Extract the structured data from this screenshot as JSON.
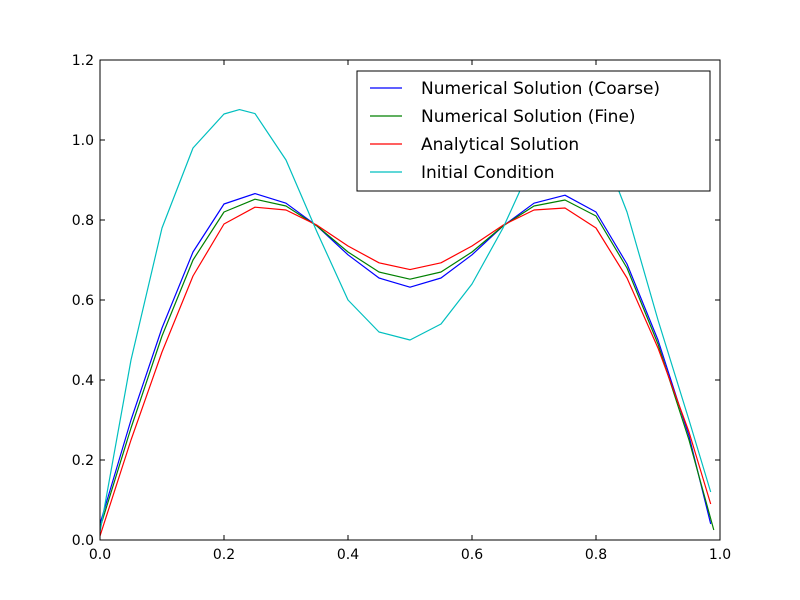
{
  "chart_data": {
    "type": "line",
    "title": "",
    "xlabel": "",
    "ylabel": "",
    "xlim": [
      0.0,
      1.0
    ],
    "ylim": [
      0.0,
      1.2
    ],
    "x_ticks": [
      "0.0",
      "0.2",
      "0.4",
      "0.6",
      "0.8",
      "1.0"
    ],
    "y_ticks": [
      "0.0",
      "0.2",
      "0.4",
      "0.6",
      "0.8",
      "1.0",
      "1.2"
    ],
    "grid": false,
    "legend_position": "top-right",
    "series": [
      {
        "name": "Numerical Solution (Coarse)",
        "color": "#0000ff",
        "x": [
          0.0,
          0.05,
          0.1,
          0.15,
          0.2,
          0.25,
          0.3,
          0.35,
          0.4,
          0.45,
          0.5,
          0.55,
          0.6,
          0.65,
          0.7,
          0.75,
          0.8,
          0.85,
          0.9,
          0.95,
          0.985
        ],
        "y": [
          0.04,
          0.3,
          0.53,
          0.72,
          0.84,
          0.866,
          0.842,
          0.785,
          0.713,
          0.655,
          0.632,
          0.655,
          0.713,
          0.785,
          0.842,
          0.862,
          0.82,
          0.69,
          0.5,
          0.26,
          0.04
        ]
      },
      {
        "name": "Numerical Solution (Fine)",
        "color": "#008000",
        "x": [
          0.0,
          0.05,
          0.1,
          0.15,
          0.2,
          0.25,
          0.3,
          0.35,
          0.4,
          0.45,
          0.5,
          0.55,
          0.6,
          0.65,
          0.7,
          0.75,
          0.8,
          0.85,
          0.9,
          0.95,
          0.99
        ],
        "y": [
          0.03,
          0.28,
          0.51,
          0.7,
          0.82,
          0.852,
          0.835,
          0.785,
          0.72,
          0.67,
          0.652,
          0.67,
          0.72,
          0.785,
          0.835,
          0.85,
          0.81,
          0.68,
          0.49,
          0.25,
          0.025
        ]
      },
      {
        "name": "Analytical Solution",
        "color": "#ff0000",
        "x": [
          0.0,
          0.05,
          0.1,
          0.15,
          0.2,
          0.25,
          0.3,
          0.35,
          0.4,
          0.45,
          0.5,
          0.55,
          0.6,
          0.65,
          0.7,
          0.75,
          0.8,
          0.85,
          0.9,
          0.95,
          0.985
        ],
        "y": [
          0.01,
          0.25,
          0.47,
          0.66,
          0.79,
          0.832,
          0.825,
          0.787,
          0.735,
          0.693,
          0.676,
          0.693,
          0.735,
          0.787,
          0.825,
          0.83,
          0.78,
          0.655,
          0.48,
          0.27,
          0.09
        ]
      },
      {
        "name": "Initial Condition",
        "color": "#00bfbf",
        "x": [
          0.0,
          0.05,
          0.1,
          0.15,
          0.2,
          0.225,
          0.25,
          0.3,
          0.35,
          0.4,
          0.45,
          0.5,
          0.55,
          0.6,
          0.65,
          0.7,
          0.75,
          0.8,
          0.85,
          0.9,
          0.95,
          0.985
        ],
        "y": [
          0.02,
          0.45,
          0.78,
          0.98,
          1.065,
          1.076,
          1.066,
          0.95,
          0.77,
          0.6,
          0.52,
          0.5,
          0.54,
          0.64,
          0.78,
          0.95,
          1.065,
          1.02,
          0.82,
          0.55,
          0.3,
          0.12
        ]
      }
    ]
  }
}
